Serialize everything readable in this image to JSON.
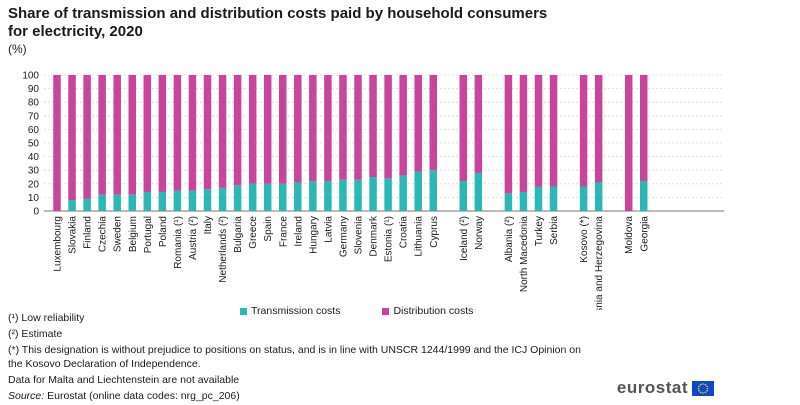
{
  "title": "Share of transmission and distribution costs paid by household consumers for electricity, 2020",
  "unit": "(%)",
  "chart_data": {
    "type": "bar",
    "stacked": true,
    "ylim": [
      0,
      100
    ],
    "y_ticks": [
      0,
      10,
      20,
      30,
      40,
      50,
      60,
      70,
      80,
      90,
      100
    ],
    "grid": true,
    "legend_position": "bottom",
    "groups": [
      [
        "Luxembourg",
        "Slovakia",
        "Finland",
        "Czechia",
        "Sweden",
        "Belgium",
        "Portugal",
        "Poland",
        "Romania (¹)",
        "Austria (²)",
        "Italy",
        "Netherlands (²)",
        "Bulgaria",
        "Greece",
        "Spain",
        "France",
        "Ireland",
        "Hungary",
        "Latvia",
        "Germany",
        "Slovenia",
        "Denmark",
        "Estonia (¹)",
        "Croatia",
        "Lithuania",
        "Cyprus"
      ],
      [
        "Iceland (²)",
        "Norway"
      ],
      [
        "Albania (²)",
        "North Macedonia",
        "Turkey",
        "Serbia"
      ],
      [
        "Kosovo (*)",
        "Bosnia and Herzegovina"
      ],
      [
        "Moldova",
        "Georgia"
      ]
    ],
    "series": [
      {
        "name": "Transmission costs",
        "color": "#2bb7b4",
        "values": [
          0,
          8,
          9,
          12,
          12,
          12,
          14,
          14,
          15,
          15,
          16,
          17,
          19,
          20,
          20,
          20,
          21,
          22,
          22,
          23,
          23,
          25,
          24,
          26,
          29,
          30,
          22,
          28,
          13,
          14,
          18,
          18,
          18,
          21,
          0,
          22
        ]
      },
      {
        "name": "Distribution costs",
        "color": "#c8459b",
        "values": [
          100,
          92,
          91,
          88,
          88,
          88,
          86,
          86,
          85,
          85,
          84,
          83,
          81,
          80,
          80,
          80,
          79,
          78,
          78,
          77,
          77,
          75,
          76,
          74,
          71,
          70,
          78,
          72,
          87,
          86,
          82,
          82,
          82,
          79,
          100,
          78
        ]
      }
    ]
  },
  "notes": [
    "(¹) Low reliability",
    "(²) Estimate",
    "(*) This designation is without prejudice to positions on status, and is in line with UNSCR 1244/1999 and the ICJ Opinion on the Kosovo Declaration of Independence.",
    " Data for Malta and Liechtenstein are not available"
  ],
  "source_label": "Source:",
  "source_text": "Eurostat (online data codes: nrg_pc_206)",
  "logo_text": "eurostat"
}
